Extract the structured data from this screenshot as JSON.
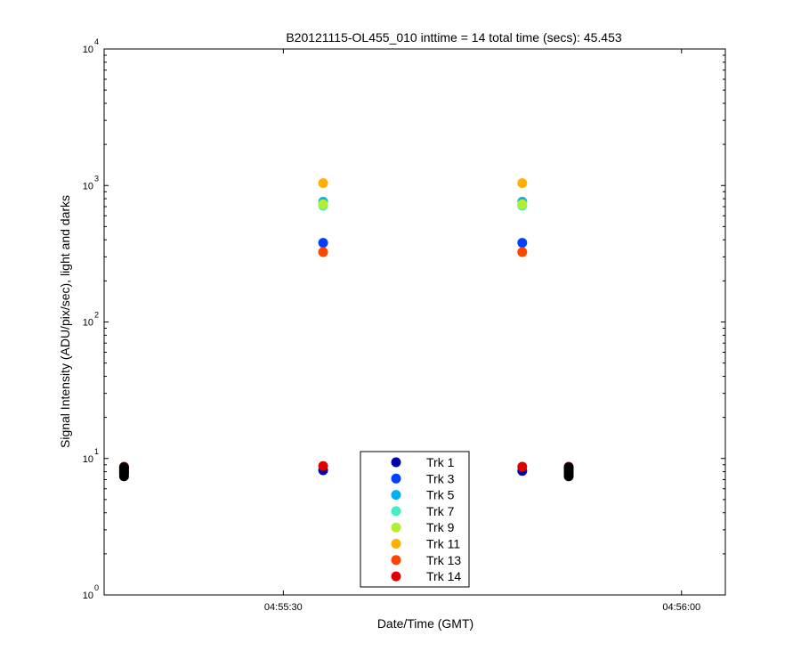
{
  "chart_data": {
    "type": "scatter",
    "title": "B20121115-OL455_010 inttime = 14 total time (secs): 45.453",
    "xlabel": "Date/Time (GMT)",
    "ylabel": "Signal Intensity (ADU/pix/sec), light and darks",
    "y_scale": "log",
    "ylim": [
      1,
      10000
    ],
    "xlim": [
      "04:55:16.5",
      "04:56:03.3"
    ],
    "x_ticks": [
      "04:55:30",
      "04:56:00"
    ],
    "y_ticks": [
      {
        "value": 1,
        "base": "10",
        "exp": "0"
      },
      {
        "value": 10,
        "base": "10",
        "exp": "1"
      },
      {
        "value": 100,
        "base": "10",
        "exp": "2"
      },
      {
        "value": 1000,
        "base": "10",
        "exp": "3"
      },
      {
        "value": 10000,
        "base": "10",
        "exp": "4"
      }
    ],
    "grid": false,
    "legend_position": "bottom-center",
    "series": [
      {
        "name": "Trk 1",
        "color": "#0000a8",
        "points": [
          {
            "x": "04:55:18",
            "y": 8.0
          },
          {
            "x": "04:55:33",
            "y": 8.2
          },
          {
            "x": "04:55:48",
            "y": 8.1
          },
          {
            "x": "04:55:51.5",
            "y": 8.0
          }
        ]
      },
      {
        "name": "Trk 3",
        "color": "#0040ff",
        "points": [
          {
            "x": "04:55:18",
            "y": 7.9
          },
          {
            "x": "04:55:33",
            "y": 380
          },
          {
            "x": "04:55:48",
            "y": 380
          },
          {
            "x": "04:55:51.5",
            "y": 7.9
          }
        ]
      },
      {
        "name": "Trk 5",
        "color": "#00b0f0",
        "points": [
          {
            "x": "04:55:18",
            "y": 8.1
          },
          {
            "x": "04:55:33",
            "y": 760
          },
          {
            "x": "04:55:48",
            "y": 760
          },
          {
            "x": "04:55:51.5",
            "y": 8.1
          }
        ]
      },
      {
        "name": "Trk 7",
        "color": "#40f0c0",
        "points": [
          {
            "x": "04:55:18",
            "y": 8.3
          },
          {
            "x": "04:55:33",
            "y": 710
          },
          {
            "x": "04:55:48",
            "y": 710
          },
          {
            "x": "04:55:51.5",
            "y": 8.3
          }
        ]
      },
      {
        "name": "Trk 9",
        "color": "#b0f030",
        "points": [
          {
            "x": "04:55:18",
            "y": 8.4
          },
          {
            "x": "04:55:33",
            "y": 730
          },
          {
            "x": "04:55:48",
            "y": 730
          },
          {
            "x": "04:55:51.5",
            "y": 8.4
          }
        ]
      },
      {
        "name": "Trk 11",
        "color": "#ffb000",
        "points": [
          {
            "x": "04:55:18",
            "y": 8.5
          },
          {
            "x": "04:55:33",
            "y": 1040
          },
          {
            "x": "04:55:48",
            "y": 1040
          },
          {
            "x": "04:55:51.5",
            "y": 8.5
          }
        ]
      },
      {
        "name": "Trk 13",
        "color": "#ff4400",
        "points": [
          {
            "x": "04:55:18",
            "y": 8.6
          },
          {
            "x": "04:55:33",
            "y": 325
          },
          {
            "x": "04:55:48",
            "y": 325
          },
          {
            "x": "04:55:51.5",
            "y": 8.6
          }
        ]
      },
      {
        "name": "Trk 14",
        "color": "#e00000",
        "points": [
          {
            "x": "04:55:18",
            "y": 8.7
          },
          {
            "x": "04:55:33",
            "y": 8.8
          },
          {
            "x": "04:55:48",
            "y": 8.7
          },
          {
            "x": "04:55:51.5",
            "y": 8.7
          }
        ]
      }
    ],
    "darks": {
      "color": "#000000",
      "points": [
        {
          "x": "04:55:18",
          "y": 7.4
        },
        {
          "x": "04:55:18",
          "y": 7.7
        },
        {
          "x": "04:55:18",
          "y": 8.0
        },
        {
          "x": "04:55:18",
          "y": 8.3
        },
        {
          "x": "04:55:18",
          "y": 8.6
        },
        {
          "x": "04:55:51.5",
          "y": 7.4
        },
        {
          "x": "04:55:51.5",
          "y": 7.7
        },
        {
          "x": "04:55:51.5",
          "y": 8.0
        },
        {
          "x": "04:55:51.5",
          "y": 8.3
        },
        {
          "x": "04:55:51.5",
          "y": 8.6
        }
      ]
    }
  }
}
